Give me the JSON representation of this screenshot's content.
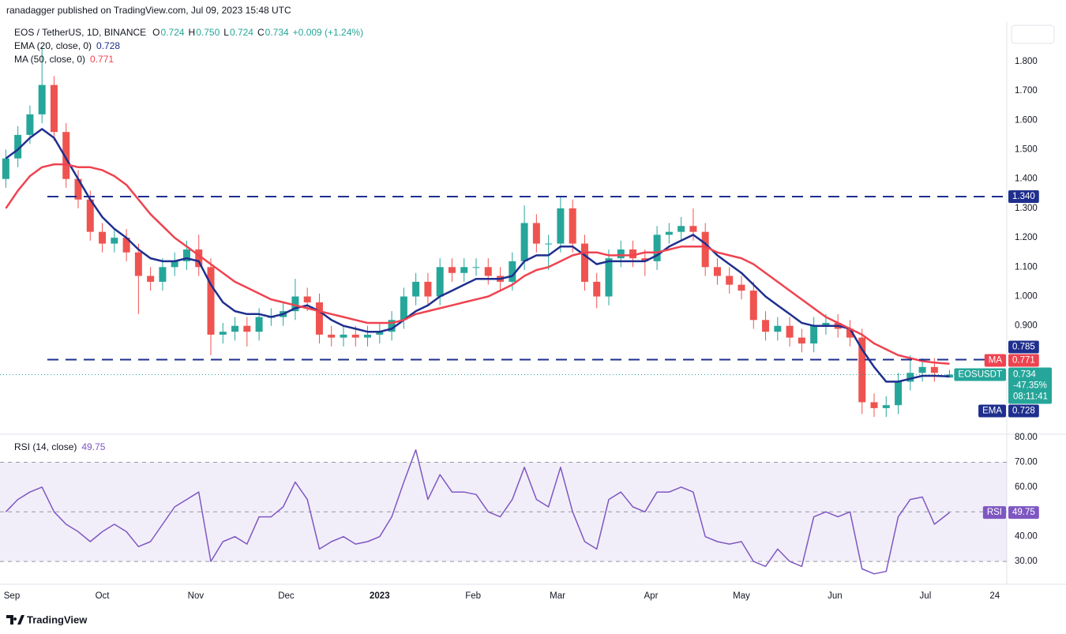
{
  "header": {
    "text": "ranadagger published on TradingView.com, Jul 09, 2023 15:48 UTC"
  },
  "chart_data": [
    {
      "type": "candlestick",
      "title": "EOS / TetherUS, 1D, BINANCE",
      "ohlc_legend": [
        {
          "label": "O",
          "value": "0.724"
        },
        {
          "label": "H",
          "value": "0.750"
        },
        {
          "label": "L",
          "value": "0.724"
        },
        {
          "label": "C",
          "value": "0.734"
        }
      ],
      "change": "+0.009 (+1.24%)",
      "x": [
        -2,
        2,
        6,
        10,
        14,
        18,
        22,
        26,
        30,
        34,
        38,
        42,
        46,
        50,
        54,
        58,
        62,
        66,
        70,
        74,
        78,
        82,
        86,
        90,
        94,
        98,
        102,
        106,
        110,
        114,
        118,
        122,
        126,
        130,
        134,
        138,
        142,
        146,
        150,
        154,
        158,
        162,
        166,
        170,
        174,
        178,
        182,
        186,
        190,
        194,
        198,
        202,
        206,
        210,
        214,
        218,
        222,
        226,
        230,
        234,
        238,
        242,
        246,
        250,
        254,
        258,
        262,
        266,
        270,
        274,
        278,
        282,
        286,
        290,
        294,
        298,
        302,
        306,
        311
      ],
      "xlim": [
        -3.93,
        330
      ],
      "ylim": [
        0.531,
        1.934
      ],
      "yticks": [
        {
          "value": 0.9,
          "label": "0.900"
        },
        {
          "value": 1.0,
          "label": "1.000"
        },
        {
          "value": 1.1,
          "label": "1.100"
        },
        {
          "value": 1.2,
          "label": "1.200"
        },
        {
          "value": 1.3,
          "label": "1.300"
        },
        {
          "value": 1.4,
          "label": "1.400"
        },
        {
          "value": 1.5,
          "label": "1.500"
        },
        {
          "value": 1.6,
          "label": "1.600"
        },
        {
          "value": 1.7,
          "label": "1.700"
        },
        {
          "value": 1.8,
          "label": "1.800"
        }
      ],
      "series": [
        {
          "name": "EOSUSDT",
          "up_color": "#26a69a",
          "down_color": "#ef5350",
          "open": [
            1.4,
            1.47,
            1.55,
            1.62,
            1.72,
            1.56,
            1.4,
            1.33,
            1.22,
            1.18,
            1.2,
            1.15,
            1.07,
            1.05,
            1.1,
            1.12,
            1.16,
            1.1,
            0.87,
            0.88,
            0.9,
            0.88,
            0.93,
            0.93,
            0.95,
            1.0,
            0.98,
            0.87,
            0.86,
            0.87,
            0.86,
            0.87,
            0.88,
            0.92,
            1.0,
            1.05,
            1.0,
            1.1,
            1.08,
            1.1,
            1.1,
            1.07,
            1.05,
            1.12,
            1.25,
            1.18,
            1.18,
            1.3,
            1.18,
            1.05,
            1.0,
            1.13,
            1.16,
            1.13,
            1.12,
            1.21,
            1.22,
            1.24,
            1.22,
            1.1,
            1.07,
            1.04,
            1.02,
            0.92,
            0.88,
            0.9,
            0.86,
            0.84,
            0.9,
            0.91,
            0.89,
            0.86,
            0.64,
            0.62,
            0.63,
            0.71,
            0.74,
            0.76,
            0.724
          ],
          "high": [
            1.5,
            1.58,
            1.65,
            1.85,
            1.75,
            1.59,
            1.43,
            1.36,
            1.25,
            1.23,
            1.23,
            1.18,
            1.1,
            1.13,
            1.15,
            1.19,
            1.21,
            1.13,
            0.91,
            0.93,
            0.93,
            0.96,
            0.96,
            0.98,
            1.06,
            1.03,
            1.01,
            0.9,
            0.9,
            0.9,
            0.9,
            0.91,
            0.95,
            1.03,
            1.08,
            1.08,
            1.13,
            1.13,
            1.13,
            1.13,
            1.13,
            1.1,
            1.15,
            1.31,
            1.28,
            1.21,
            1.34,
            1.33,
            1.21,
            1.08,
            1.16,
            1.19,
            1.19,
            1.16,
            1.24,
            1.25,
            1.27,
            1.3,
            1.25,
            1.13,
            1.1,
            1.07,
            1.05,
            0.95,
            0.93,
            0.93,
            0.89,
            0.93,
            0.94,
            0.94,
            0.92,
            0.89,
            0.67,
            0.66,
            0.74,
            0.8,
            0.79,
            0.79,
            0.75
          ],
          "low": [
            1.37,
            1.44,
            1.52,
            1.59,
            1.53,
            1.37,
            1.3,
            1.19,
            1.15,
            1.15,
            1.12,
            0.94,
            1.02,
            1.02,
            1.07,
            1.09,
            1.07,
            0.8,
            0.84,
            0.85,
            0.83,
            0.85,
            0.9,
            0.9,
            0.92,
            0.95,
            0.84,
            0.83,
            0.83,
            0.83,
            0.83,
            0.84,
            0.85,
            0.89,
            0.97,
            0.97,
            0.97,
            1.05,
            1.05,
            1.07,
            1.04,
            1.02,
            1.02,
            1.09,
            1.15,
            1.09,
            1.15,
            1.15,
            1.02,
            0.96,
            0.97,
            1.1,
            1.1,
            1.07,
            1.09,
            1.18,
            1.19,
            1.19,
            1.07,
            1.04,
            1.01,
            0.99,
            0.89,
            0.85,
            0.85,
            0.83,
            0.81,
            0.81,
            0.87,
            0.86,
            0.83,
            0.6,
            0.59,
            0.59,
            0.6,
            0.68,
            0.71,
            0.71,
            0.724
          ],
          "close": [
            1.47,
            1.55,
            1.62,
            1.72,
            1.56,
            1.4,
            1.33,
            1.22,
            1.18,
            1.2,
            1.15,
            1.07,
            1.05,
            1.1,
            1.12,
            1.16,
            1.1,
            0.87,
            0.88,
            0.9,
            0.88,
            0.93,
            0.93,
            0.95,
            1.0,
            0.98,
            0.87,
            0.86,
            0.87,
            0.86,
            0.87,
            0.88,
            0.92,
            1.0,
            1.05,
            1.0,
            1.1,
            1.08,
            1.1,
            1.1,
            1.07,
            1.05,
            1.12,
            1.25,
            1.18,
            1.18,
            1.3,
            1.18,
            1.05,
            1.0,
            1.13,
            1.16,
            1.13,
            1.12,
            1.21,
            1.22,
            1.24,
            1.22,
            1.1,
            1.07,
            1.04,
            1.02,
            0.92,
            0.88,
            0.9,
            0.86,
            0.84,
            0.9,
            0.91,
            0.89,
            0.86,
            0.64,
            0.62,
            0.63,
            0.71,
            0.74,
            0.76,
            0.74,
            0.734
          ]
        },
        {
          "name": "EMA",
          "legend": "EMA (20, close, 0)",
          "legend_value": "0.728",
          "color": "#1f2f8e",
          "values": [
            1.47,
            1.5,
            1.54,
            1.57,
            1.54,
            1.47,
            1.4,
            1.33,
            1.27,
            1.23,
            1.2,
            1.16,
            1.13,
            1.12,
            1.12,
            1.13,
            1.12,
            1.04,
            0.98,
            0.95,
            0.94,
            0.94,
            0.93,
            0.94,
            0.96,
            0.97,
            0.95,
            0.92,
            0.9,
            0.89,
            0.88,
            0.88,
            0.89,
            0.92,
            0.95,
            0.97,
            1.0,
            1.02,
            1.04,
            1.06,
            1.06,
            1.06,
            1.07,
            1.12,
            1.14,
            1.14,
            1.17,
            1.17,
            1.14,
            1.11,
            1.12,
            1.12,
            1.12,
            1.12,
            1.14,
            1.17,
            1.19,
            1.21,
            1.18,
            1.14,
            1.11,
            1.08,
            1.04,
            1.0,
            0.97,
            0.94,
            0.91,
            0.9,
            0.9,
            0.9,
            0.89,
            0.82,
            0.76,
            0.71,
            0.71,
            0.72,
            0.73,
            0.73,
            0.728
          ]
        },
        {
          "name": "MA",
          "legend": "MA (50, close, 0)",
          "legend_value": "0.771",
          "color": "#ef4350",
          "values": [
            1.3,
            1.36,
            1.41,
            1.44,
            1.45,
            1.45,
            1.44,
            1.44,
            1.43,
            1.41,
            1.38,
            1.33,
            1.28,
            1.24,
            1.2,
            1.17,
            1.14,
            1.11,
            1.08,
            1.05,
            1.03,
            1.01,
            0.99,
            0.98,
            0.97,
            0.96,
            0.95,
            0.94,
            0.93,
            0.92,
            0.91,
            0.91,
            0.91,
            0.92,
            0.94,
            0.95,
            0.96,
            0.97,
            0.98,
            0.99,
            1.0,
            1.02,
            1.04,
            1.07,
            1.09,
            1.1,
            1.12,
            1.14,
            1.15,
            1.15,
            1.14,
            1.14,
            1.14,
            1.15,
            1.15,
            1.16,
            1.17,
            1.17,
            1.17,
            1.15,
            1.14,
            1.13,
            1.11,
            1.08,
            1.05,
            1.02,
            0.99,
            0.96,
            0.93,
            0.91,
            0.89,
            0.87,
            0.84,
            0.82,
            0.8,
            0.79,
            0.78,
            0.775,
            0.771
          ]
        }
      ],
      "levels": [
        {
          "value": 1.34,
          "label": "1.340"
        },
        {
          "value": 0.785,
          "label": "0.785"
        }
      ],
      "level_color": "#1f2f8e",
      "price_tags": [
        {
          "name": "MA",
          "value": 0.771,
          "label": "0.771",
          "color": "#ef4350"
        },
        {
          "name": "EOSUSDT",
          "value": 0.734,
          "label": "0.734",
          "change": "-47.35%",
          "countdown": "08:11:41",
          "color": "#26a69a"
        },
        {
          "name": "EMA",
          "value": 0.728,
          "label": "0.728",
          "color": "#1f2f8e"
        }
      ]
    },
    {
      "type": "line",
      "title": "RSI (14, close)",
      "legend_value": "49.75",
      "x": [
        -2,
        2,
        6,
        10,
        14,
        18,
        22,
        26,
        30,
        34,
        38,
        42,
        46,
        50,
        54,
        58,
        62,
        66,
        70,
        74,
        78,
        82,
        86,
        90,
        94,
        98,
        102,
        106,
        110,
        114,
        118,
        122,
        126,
        130,
        134,
        138,
        142,
        146,
        150,
        154,
        158,
        162,
        166,
        170,
        174,
        178,
        182,
        186,
        190,
        194,
        198,
        202,
        206,
        210,
        214,
        218,
        222,
        226,
        230,
        234,
        238,
        242,
        246,
        250,
        254,
        258,
        262,
        266,
        270,
        274,
        278,
        282,
        286,
        290,
        294,
        298,
        302,
        306,
        311
      ],
      "xlim": [
        -3.93,
        330
      ],
      "xticks": [
        {
          "value": 0,
          "label": "Sep"
        },
        {
          "value": 30,
          "label": "Oct"
        },
        {
          "value": 61,
          "label": "Nov"
        },
        {
          "value": 91,
          "label": "Dec"
        },
        {
          "value": 122,
          "label": "2023"
        },
        {
          "value": 153,
          "label": "Feb"
        },
        {
          "value": 181,
          "label": "Mar"
        },
        {
          "value": 212,
          "label": "Apr"
        },
        {
          "value": 242,
          "label": "May"
        },
        {
          "value": 273,
          "label": "Jun"
        },
        {
          "value": 303,
          "label": "Jul"
        },
        {
          "value": 326,
          "label": "24"
        }
      ],
      "ylim": [
        20.8,
        81.3
      ],
      "yticks": [
        {
          "value": 30,
          "label": "30.00"
        },
        {
          "value": 40,
          "label": "40.00"
        },
        {
          "value": 50,
          "label": "50.00"
        },
        {
          "value": 60,
          "label": "60.00"
        },
        {
          "value": 70,
          "label": "70.00"
        },
        {
          "value": 80,
          "label": "80.00"
        }
      ],
      "band": [
        30,
        70
      ],
      "midline": 50,
      "series": [
        {
          "name": "RSI",
          "color": "#7e57c2",
          "values": [
            50,
            55,
            58,
            60,
            50,
            45,
            42,
            38,
            42,
            45,
            42,
            36,
            38,
            45,
            52,
            55,
            58,
            30,
            38,
            40,
            37,
            48,
            48,
            52,
            62,
            55,
            35,
            38,
            40,
            37,
            38,
            40,
            48,
            62,
            75,
            55,
            65,
            58,
            58,
            57,
            50,
            48,
            55,
            68,
            55,
            52,
            68,
            50,
            38,
            35,
            55,
            58,
            52,
            50,
            58,
            58,
            60,
            58,
            40,
            38,
            37,
            38,
            30,
            28,
            35,
            30,
            28,
            48,
            50,
            48,
            50,
            27,
            25,
            26,
            48,
            55,
            56,
            45,
            49.75
          ]
        }
      ],
      "price_tags": [
        {
          "name": "RSI",
          "value": 49.75,
          "label": "49.75",
          "color": "#7e57c2"
        }
      ]
    }
  ],
  "footer": {
    "logo": "TradingView"
  }
}
